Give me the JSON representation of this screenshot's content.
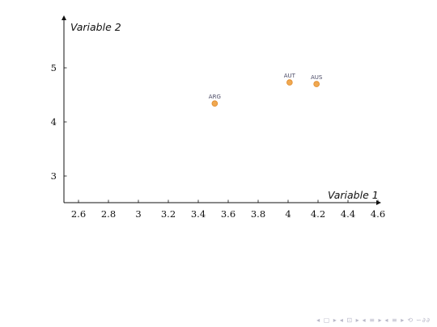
{
  "chart_data": {
    "type": "scatter",
    "xlabel": "Variable 1",
    "ylabel": "Variable 2",
    "xlim": [
      2.5,
      4.6
    ],
    "ylim": [
      2.5,
      5.9
    ],
    "xticks": [
      "2.6",
      "2.8",
      "3",
      "3.2",
      "3.4",
      "3.6",
      "3.8",
      "4",
      "4.2",
      "4.4",
      "4.6"
    ],
    "yticks": [
      "3",
      "4",
      "5"
    ],
    "grid": false,
    "legend": "none",
    "point_color": "#f0a850",
    "point_stroke": "#e08a2a",
    "points": [
      {
        "label": "ARG",
        "x": 3.51,
        "y": 4.34
      },
      {
        "label": "AUT",
        "x": 4.01,
        "y": 4.73
      },
      {
        "label": "AUS",
        "x": 4.19,
        "y": 4.7
      }
    ]
  },
  "nav": {
    "icons": [
      "nav-first-icon",
      "nav-prev-icon",
      "nav-section-icon",
      "nav-next-icon",
      "nav-align-icon",
      "nav-search-icon"
    ],
    "glyphs": [
      "◂ ▢ ▸",
      "◂ ⊡ ▸",
      "◂ ≡ ▸",
      "◂ ≡ ▸",
      "⟲",
      "∽∂∂"
    ]
  }
}
